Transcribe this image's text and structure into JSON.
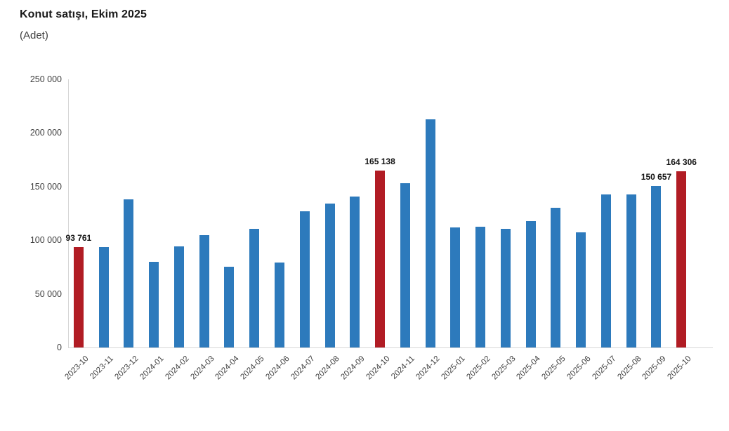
{
  "header": {
    "title": "Konut satışı, Ekim 2025",
    "subtitle": "(Adet)"
  },
  "chart_data": {
    "type": "bar",
    "title": "Konut satışı, Ekim 2025",
    "subtitle": "(Adet)",
    "ylabel": "Adet",
    "xlabel": "",
    "ylim": [
      0,
      250000
    ],
    "grid": false,
    "legend": "none",
    "bar_color": "#2d7abc",
    "highlight_color": "#b11c24",
    "highlight_indices": [
      0,
      12,
      24
    ],
    "ytick_values": [
      0,
      50000,
      100000,
      150000,
      200000,
      250000
    ],
    "ytick_labels": [
      "0",
      "50 000",
      "100 000",
      "150 000",
      "200 000",
      "250 000"
    ],
    "categories": [
      "2023-10",
      "2023-11",
      "2023-12",
      "2024-01",
      "2024-02",
      "2024-03",
      "2024-04",
      "2024-05",
      "2024-06",
      "2024-07",
      "2024-08",
      "2024-09",
      "2024-10",
      "2024-11",
      "2024-12",
      "2025-01",
      "2025-02",
      "2025-03",
      "2025-04",
      "2025-05",
      "2025-06",
      "2025-07",
      "2025-08",
      "2025-09",
      "2025-10"
    ],
    "values": [
      93761,
      93500,
      138000,
      80000,
      94000,
      105000,
      75500,
      110500,
      79000,
      127000,
      134000,
      141000,
      165138,
      153000,
      212500,
      112000,
      112500,
      110500,
      118000,
      130000,
      107500,
      142500,
      143000,
      150657,
      164306
    ],
    "data_labels": [
      {
        "index": 0,
        "text": "93 761"
      },
      {
        "index": 12,
        "text": "165 138"
      },
      {
        "index": 23,
        "text": "150 657"
      },
      {
        "index": 24,
        "text": "164 306"
      }
    ]
  }
}
